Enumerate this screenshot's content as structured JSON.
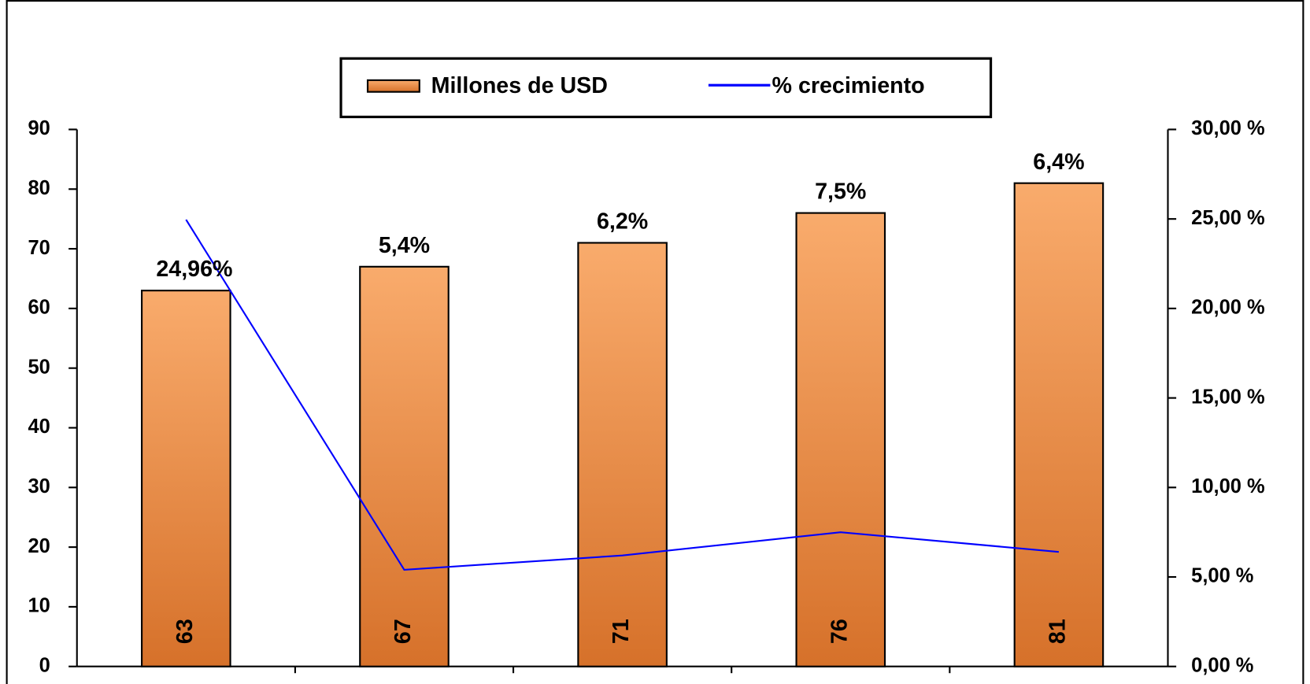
{
  "chart_data": {
    "type": "bar",
    "categories": [
      null,
      null,
      null,
      null,
      null
    ],
    "series": [
      {
        "name": "Millones de USD",
        "color": "#e8883c",
        "values": [
          63,
          67,
          71,
          76,
          81
        ]
      },
      {
        "name": "% crecimiento",
        "color": "#0000ff",
        "type": "line",
        "axis": "y2",
        "values": [
          24.96,
          5.4,
          6.2,
          7.5,
          6.4
        ],
        "value_labels": [
          "24,96%",
          "5,4%",
          "6,2%",
          "7,5%",
          "6,4%"
        ]
      }
    ],
    "ylim": [
      0,
      90
    ],
    "yticks": [
      0,
      10,
      20,
      30,
      40,
      50,
      60,
      70,
      80,
      90
    ],
    "y2lim": [
      0,
      30
    ],
    "y2ticks": [
      {
        "value": 0,
        "label": "0,00 %"
      },
      {
        "value": 5,
        "label": "5,00 %"
      },
      {
        "value": 10,
        "label": "10,00 %"
      },
      {
        "value": 15,
        "label": "15,00 %"
      },
      {
        "value": 20,
        "label": "20,00 %"
      },
      {
        "value": 25,
        "label": "25,00 %"
      },
      {
        "value": 30,
        "label": "30,00 %"
      }
    ],
    "legend": "top"
  }
}
